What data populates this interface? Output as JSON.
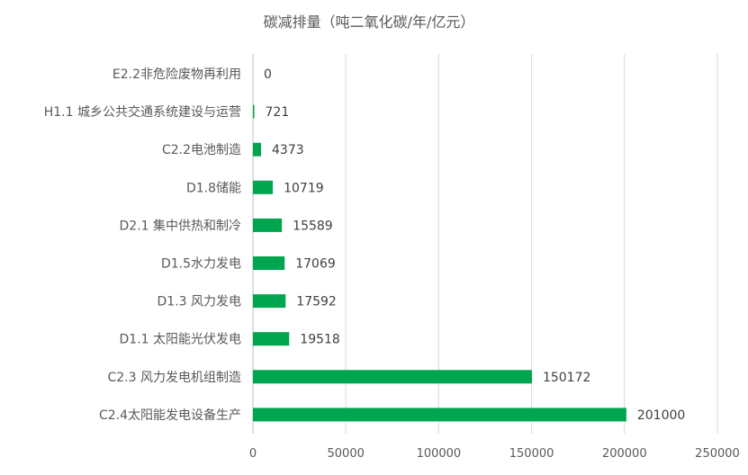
{
  "chart_data": {
    "type": "bar",
    "orientation": "horizontal",
    "title": "碳减排量（吨二氧化碳/年/亿元）",
    "categories": [
      "E2.2非危险废物再利用",
      "H1.1 城乡公共交通系统建设与运营",
      "C2.2电池制造",
      "D1.8储能",
      "D2.1 集中供热和制冷",
      "D1.5水力发电",
      "D1.3 风力发电",
      "D1.1 太阳能光伏发电",
      "C2.3 风力发电机组制造",
      "C2.4太阳能发电设备生产"
    ],
    "values": [
      0,
      721,
      4373,
      10719,
      15589,
      17069,
      17592,
      19518,
      150172,
      201000
    ],
    "xlim": [
      0,
      250000
    ],
    "xticks": [
      "0",
      "50000",
      "100000",
      "150000",
      "200000",
      "250000"
    ],
    "bar_color": "#00A550",
    "grid": true,
    "legend": "none"
  }
}
